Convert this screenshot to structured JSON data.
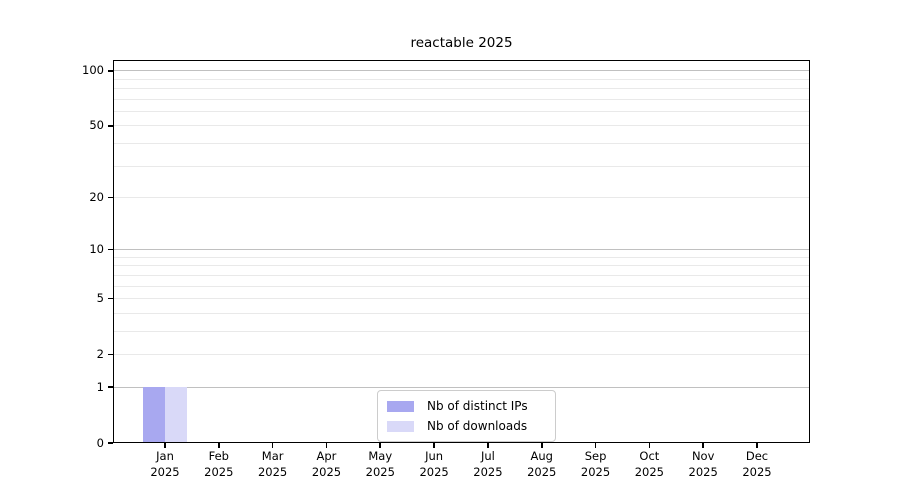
{
  "chart_data": {
    "type": "bar",
    "title": "reactable 2025",
    "x": {
      "months": [
        "Jan",
        "Feb",
        "Mar",
        "Apr",
        "May",
        "Jun",
        "Jul",
        "Aug",
        "Sep",
        "Oct",
        "Nov",
        "Dec"
      ],
      "year": "2025"
    },
    "series": [
      {
        "name": "Nb of distinct IPs",
        "color": "#a8a8f0",
        "values": [
          1,
          0,
          0,
          0,
          0,
          0,
          0,
          0,
          0,
          0,
          0,
          0
        ]
      },
      {
        "name": "Nb of downloads",
        "color": "#d9d9f8",
        "values": [
          1,
          0,
          0,
          0,
          0,
          0,
          0,
          0,
          0,
          0,
          0,
          0
        ]
      }
    ],
    "y_axis": {
      "scale": "log1p",
      "ylim": [
        0,
        114.5
      ],
      "tick_values": [
        100,
        50,
        20,
        10,
        5,
        2,
        1,
        0
      ],
      "tick_labels": [
        "100",
        "50",
        "20",
        "10",
        "5",
        "2",
        "1",
        "0"
      ],
      "decade_gridlines": [
        1,
        10,
        100
      ],
      "minor_gridlines": [
        2,
        3,
        4,
        5,
        6,
        7,
        8,
        9,
        20,
        30,
        40,
        50,
        60,
        70,
        80,
        90
      ]
    },
    "legend": {
      "position": "lower center",
      "entries": [
        "Nb of distinct IPs",
        "Nb of downloads"
      ]
    },
    "grid": true
  },
  "colors": {
    "bar_distinct_ips": "#a8a8f0",
    "bar_downloads": "#d9d9f8",
    "grid_major": "#c0c0c0",
    "grid_minor": "#e9e9e9",
    "spine": "#000000",
    "legend_border": "#cccccc",
    "text": "#000000",
    "background": "#ffffff"
  }
}
